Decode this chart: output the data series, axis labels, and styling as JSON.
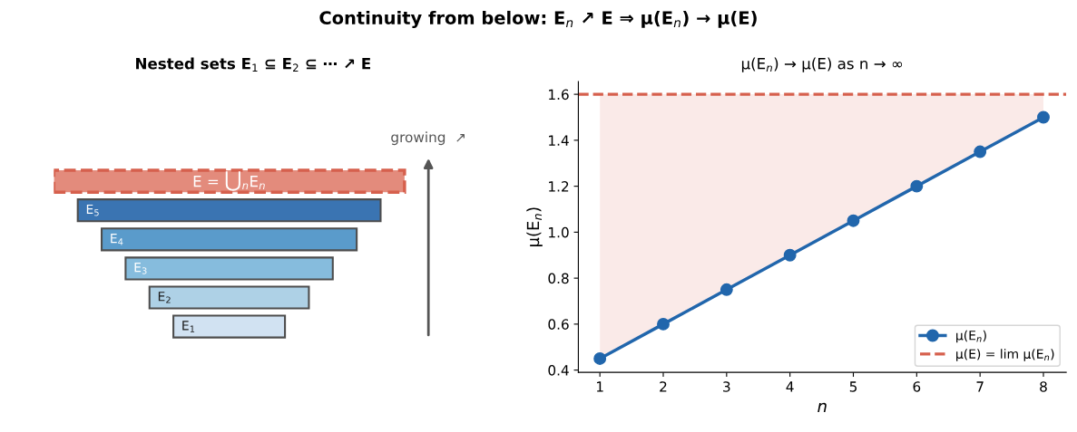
{
  "chart_data": [
    {
      "type": "other",
      "title": "Nested sets E$_{1}$ ⊆ E$_{2}$ ⊆ ⋯ ↗ E",
      "annotations": [
        "E$_{1}$",
        "E$_{2}$",
        "E$_{3}$",
        "E$_{4}$",
        "E$_{5}$",
        "E = ⋃$_{n}$E$_{n}$",
        "growing  ↗"
      ]
    },
    {
      "type": "line",
      "title": "Continuity from below: E$_{n}$ ↗ E ⇒ μ(E$_{n}$) → μ(E)",
      "subtitle": "μ(E$_{n}$) → μ(E) as n → ∞",
      "xlabel": "n",
      "ylabel": "μ(E$_{n}$)",
      "x": [
        1,
        2,
        3,
        4,
        5,
        6,
        7,
        8
      ],
      "series": [
        {
          "name": "μ(E$_{n}$)",
          "color": "#2166ac",
          "values": [
            0.45,
            0.6,
            0.75,
            0.9,
            1.05,
            1.2,
            1.35,
            1.5
          ],
          "lower": [
            0.45,
            0.6,
            0.75,
            0.9,
            1.05,
            1.2,
            1.35,
            1.5
          ],
          "upper": [
            1.6,
            1.6,
            1.6,
            1.6,
            1.6,
            1.6,
            1.6,
            1.6
          ]
        }
      ],
      "ref_lines": [
        {
          "axis": "y",
          "value": 1.6,
          "label": "μ(E) = lim μ(E$_{n}$)",
          "color": "#d6604d",
          "line_style": "dashed"
        }
      ],
      "xlim": [
        0.66,
        8.36
      ],
      "ylim": [
        0.39,
        1.655
      ],
      "xticks": [
        1,
        2,
        3,
        4,
        5,
        6,
        7,
        8
      ],
      "yticks": [
        0.4,
        0.6,
        0.8,
        {
          "value": 1,
          "label": "1.0"
        },
        1.2,
        1.4,
        1.6
      ],
      "marker": "circle",
      "line_style": "solid",
      "grid": false,
      "legend": "bottom right"
    }
  ]
}
